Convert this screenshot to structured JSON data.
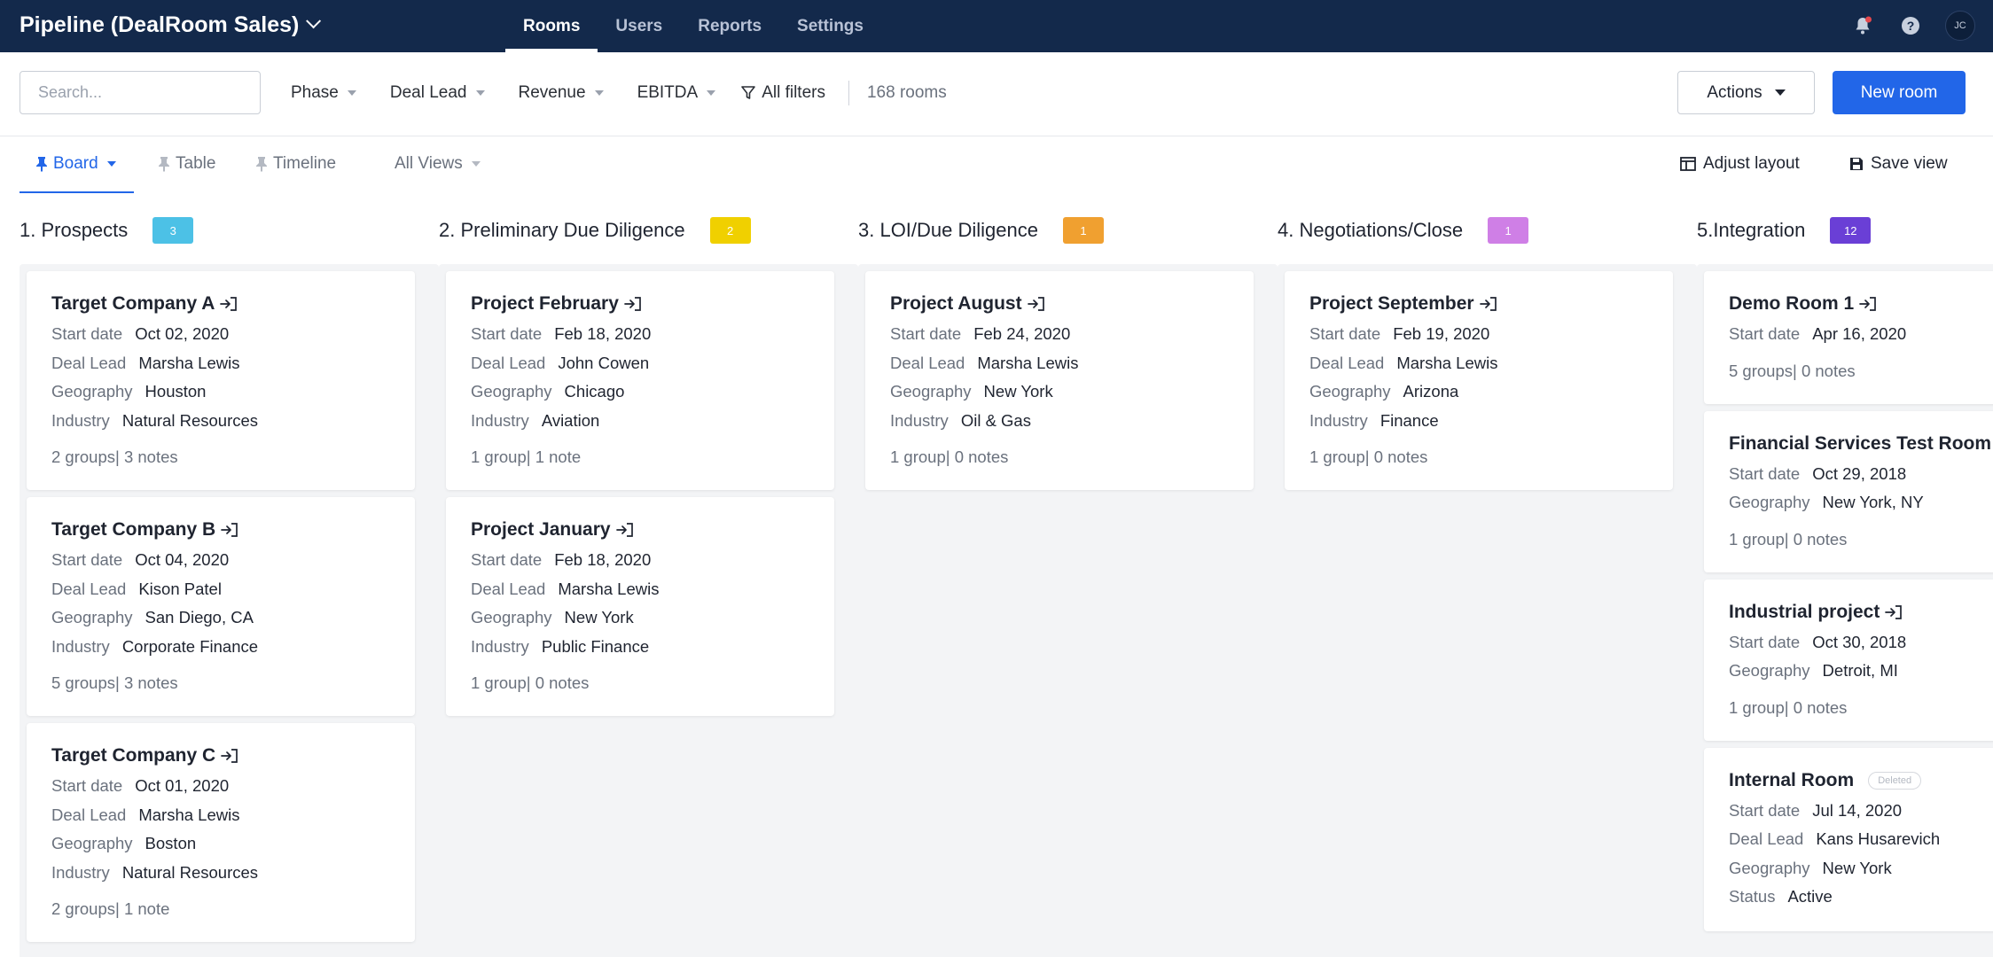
{
  "app": {
    "title": "Pipeline (DealRoom Sales)"
  },
  "nav": {
    "items": [
      {
        "label": "Rooms"
      },
      {
        "label": "Users"
      },
      {
        "label": "Reports"
      },
      {
        "label": "Settings"
      }
    ]
  },
  "user": {
    "initials": "JC"
  },
  "search": {
    "placeholder": "Search..."
  },
  "filters": {
    "phase": "Phase",
    "deal_lead": "Deal Lead",
    "revenue": "Revenue",
    "ebitda": "EBITDA",
    "all_filters": "All filters",
    "rooms_count": "168 rooms"
  },
  "buttons": {
    "actions": "Actions",
    "new_room": "New room"
  },
  "views": {
    "board": "Board",
    "table": "Table",
    "timeline": "Timeline",
    "all_views": "All Views",
    "adjust_layout": "Adjust layout",
    "save_view": "Save view"
  },
  "columns": [
    {
      "title": "1. Prospects",
      "count": "3",
      "color": "#4cc1e6",
      "cards": [
        {
          "title": "Target Company A",
          "fields": [
            [
              "Start date",
              "Oct 02, 2020"
            ],
            [
              "Deal Lead",
              "Marsha Lewis"
            ],
            [
              "Geography",
              "Houston"
            ],
            [
              "Industry",
              "Natural Resources"
            ]
          ],
          "meta": "2 groups| 3 notes"
        },
        {
          "title": "Target Company B",
          "fields": [
            [
              "Start date",
              "Oct 04, 2020"
            ],
            [
              "Deal Lead",
              "Kison Patel"
            ],
            [
              "Geography",
              "San Diego, CA"
            ],
            [
              "Industry",
              "Corporate Finance"
            ]
          ],
          "meta": "5 groups| 3 notes"
        },
        {
          "title": "Target Company C",
          "fields": [
            [
              "Start date",
              "Oct 01, 2020"
            ],
            [
              "Deal Lead",
              "Marsha Lewis"
            ],
            [
              "Geography",
              "Boston"
            ],
            [
              "Industry",
              "Natural Resources"
            ]
          ],
          "meta": "2 groups| 1 note"
        }
      ]
    },
    {
      "title": "2. Preliminary Due Diligence",
      "count": "2",
      "color": "#f0d000",
      "cards": [
        {
          "title": "Project February",
          "fields": [
            [
              "Start date",
              "Feb 18, 2020"
            ],
            [
              "Deal Lead",
              "John Cowen"
            ],
            [
              "Geography",
              "Chicago"
            ],
            [
              "Industry",
              "Aviation"
            ]
          ],
          "meta": "1 group| 1 note"
        },
        {
          "title": "Project January",
          "fields": [
            [
              "Start date",
              "Feb 18, 2020"
            ],
            [
              "Deal Lead",
              "Marsha Lewis"
            ],
            [
              "Geography",
              "New York"
            ],
            [
              "Industry",
              "Public Finance"
            ]
          ],
          "meta": "1 group| 0 notes"
        }
      ]
    },
    {
      "title": "3. LOI/Due Diligence",
      "count": "1",
      "color": "#f0a030",
      "cards": [
        {
          "title": "Project August",
          "fields": [
            [
              "Start date",
              "Feb 24, 2020"
            ],
            [
              "Deal Lead",
              "Marsha Lewis"
            ],
            [
              "Geography",
              "New York"
            ],
            [
              "Industry",
              "Oil & Gas"
            ]
          ],
          "meta": "1 group| 0 notes"
        }
      ]
    },
    {
      "title": "4. Negotiations/Close",
      "count": "1",
      "color": "#cf7fe6",
      "cards": [
        {
          "title": "Project September",
          "fields": [
            [
              "Start date",
              "Feb 19, 2020"
            ],
            [
              "Deal Lead",
              "Marsha Lewis"
            ],
            [
              "Geography",
              "Arizona"
            ],
            [
              "Industry",
              "Finance"
            ]
          ],
          "meta": "1 group| 0 notes"
        }
      ]
    },
    {
      "title": "5.Integration",
      "count": "12",
      "color": "#6a3fd6",
      "cards": [
        {
          "title": "Demo Room 1",
          "fields": [
            [
              "Start date",
              "Apr 16, 2020"
            ]
          ],
          "meta": "5 groups| 0 notes"
        },
        {
          "title": "Financial Services Test Room",
          "fields": [
            [
              "Start date",
              "Oct 29, 2018"
            ],
            [
              "Geography",
              "New York, NY"
            ]
          ],
          "meta": "1 group| 0 notes"
        },
        {
          "title": "Industrial project",
          "fields": [
            [
              "Start date",
              "Oct 30, 2018"
            ],
            [
              "Geography",
              "Detroit, MI"
            ]
          ],
          "meta": "1 group| 0 notes"
        },
        {
          "title": "Internal Room",
          "tag": "Deleted",
          "fields": [
            [
              "Start date",
              "Jul 14, 2020"
            ],
            [
              "Deal Lead",
              "Kans Husarevich"
            ],
            [
              "Geography",
              "New York"
            ],
            [
              "Status",
              "Active"
            ]
          ],
          "meta": ""
        }
      ]
    }
  ]
}
